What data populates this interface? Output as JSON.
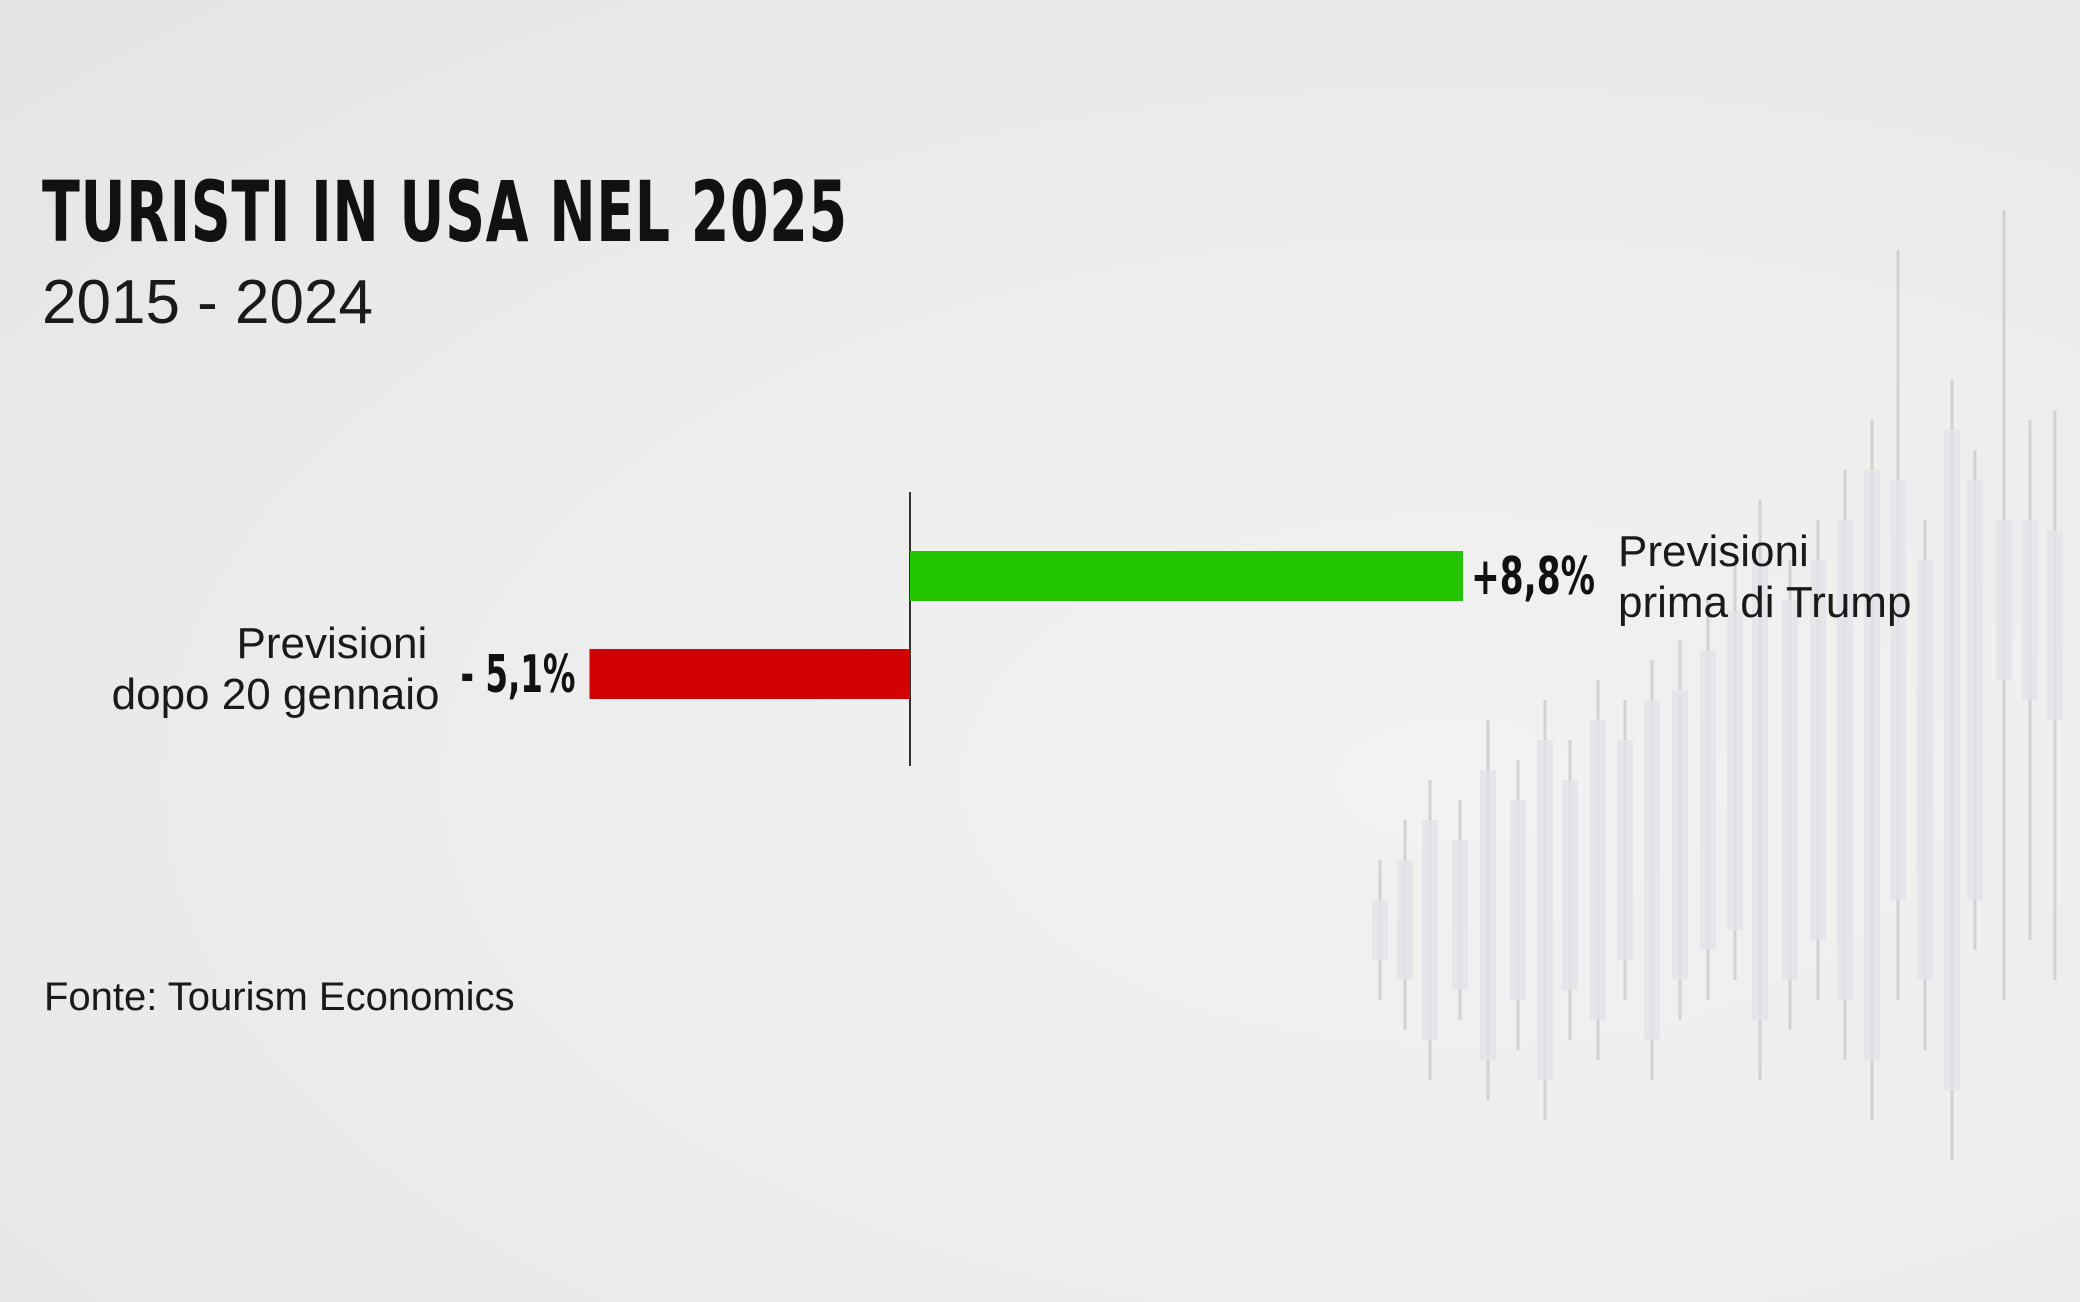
{
  "title": "TURISTI IN USA NEL 2025",
  "subtitle": "2015 - 2024",
  "source": "Fonte: Tourism Economics",
  "colors": {
    "positive": "#22c400",
    "negative": "#d20000",
    "axis": "#333333"
  },
  "chart_data": {
    "type": "bar",
    "orientation": "horizontal",
    "categories": [
      "Previsioni prima di Trump",
      "Previsioni dopo 20 gennaio"
    ],
    "category_lines": [
      [
        "Previsioni",
        "prima di Trump"
      ],
      [
        "Previsioni",
        "dopo 20 gennaio"
      ]
    ],
    "values": [
      8.8,
      -5.1
    ],
    "value_labels": [
      "+8,8%",
      "- 5,1%"
    ],
    "unit": "%",
    "xlim": [
      -10.5,
      10.5
    ],
    "grid": false,
    "legend": "none"
  }
}
